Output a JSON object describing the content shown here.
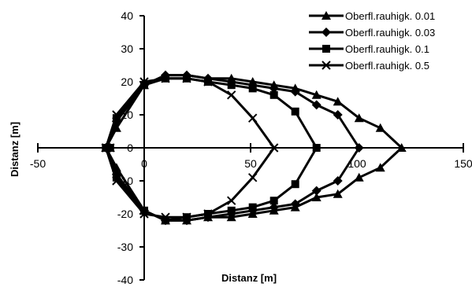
{
  "chart_data": {
    "type": "scatter",
    "title": "",
    "xlabel": "Distanz [m]",
    "ylabel": "Distanz  [m]",
    "xlim": [
      -50,
      150
    ],
    "ylim": [
      -40,
      40
    ],
    "x_ticks": [
      -50,
      0,
      50,
      100,
      150
    ],
    "y_ticks": [
      40,
      30,
      20,
      10,
      0,
      -10,
      -20,
      -30,
      -40
    ],
    "x_tick_labels": [
      "-50",
      "0",
      "50",
      "100",
      "150"
    ],
    "y_tick_labels": [
      "40",
      "30",
      "20",
      "10",
      "0",
      "-10",
      "-20",
      "-30",
      "-40"
    ],
    "legend_position": "top-right",
    "series": [
      {
        "name": "Oberfl.rauhigk. 0.01",
        "marker": "triangle",
        "points": [
          [
            -16,
            0
          ],
          [
            -18,
            0
          ],
          [
            -13,
            6
          ],
          [
            0,
            19
          ],
          [
            10,
            22
          ],
          [
            20,
            22
          ],
          [
            30,
            21
          ],
          [
            41,
            21
          ],
          [
            51,
            20
          ],
          [
            61,
            19
          ],
          [
            71,
            18
          ],
          [
            81,
            16
          ],
          [
            91,
            14
          ],
          [
            101,
            9
          ],
          [
            111,
            6
          ],
          [
            121,
            0
          ],
          [
            111,
            -6
          ],
          [
            101,
            -9
          ],
          [
            91,
            -14
          ],
          [
            81,
            -15
          ],
          [
            71,
            -18
          ],
          [
            61,
            -19
          ],
          [
            51,
            -20
          ],
          [
            41,
            -21
          ],
          [
            30,
            -21
          ],
          [
            20,
            -22
          ],
          [
            10,
            -22
          ],
          [
            0,
            -19
          ],
          [
            -13,
            -6
          ],
          [
            -18,
            0
          ]
        ]
      },
      {
        "name": "Oberfl.rauhigk. 0.03",
        "marker": "diamond",
        "points": [
          [
            -16,
            0
          ],
          [
            -18,
            0
          ],
          [
            -13,
            8
          ],
          [
            0,
            19
          ],
          [
            10,
            22
          ],
          [
            20,
            22
          ],
          [
            30,
            21
          ],
          [
            41,
            20
          ],
          [
            51,
            19
          ],
          [
            61,
            18
          ],
          [
            71,
            17
          ],
          [
            81,
            13
          ],
          [
            91,
            10
          ],
          [
            101,
            0
          ],
          [
            91,
            -10
          ],
          [
            81,
            -13
          ],
          [
            71,
            -17
          ],
          [
            61,
            -18
          ],
          [
            51,
            -19
          ],
          [
            41,
            -20
          ],
          [
            30,
            -21
          ],
          [
            20,
            -22
          ],
          [
            10,
            -22
          ],
          [
            0,
            -19
          ],
          [
            -13,
            -8
          ],
          [
            -18,
            0
          ]
        ]
      },
      {
        "name": "Oberfl.rauhigk. 0.1",
        "marker": "square",
        "points": [
          [
            -16,
            0
          ],
          [
            -18,
            0
          ],
          [
            -13,
            9
          ],
          [
            0,
            19
          ],
          [
            10,
            21
          ],
          [
            20,
            21
          ],
          [
            30,
            20
          ],
          [
            41,
            19
          ],
          [
            51,
            18
          ],
          [
            61,
            16
          ],
          [
            71,
            11
          ],
          [
            81,
            0
          ],
          [
            71,
            -11
          ],
          [
            61,
            -16
          ],
          [
            51,
            -18
          ],
          [
            41,
            -19
          ],
          [
            30,
            -20
          ],
          [
            20,
            -21
          ],
          [
            10,
            -22
          ],
          [
            0,
            -19
          ],
          [
            -13,
            -9
          ],
          [
            -18,
            0
          ]
        ]
      },
      {
        "name": "Oberfl.rauhigk. 0.5",
        "marker": "x",
        "points": [
          [
            -16,
            0
          ],
          [
            -18,
            0
          ],
          [
            -13,
            10
          ],
          [
            0,
            20
          ],
          [
            10,
            21
          ],
          [
            20,
            21
          ],
          [
            30,
            20
          ],
          [
            41,
            16
          ],
          [
            51,
            9
          ],
          [
            61,
            0
          ],
          [
            51,
            -9
          ],
          [
            41,
            -16
          ],
          [
            30,
            -20
          ],
          [
            20,
            -21
          ],
          [
            10,
            -21
          ],
          [
            0,
            -20
          ],
          [
            -13,
            -10
          ],
          [
            -18,
            0
          ]
        ]
      }
    ]
  }
}
